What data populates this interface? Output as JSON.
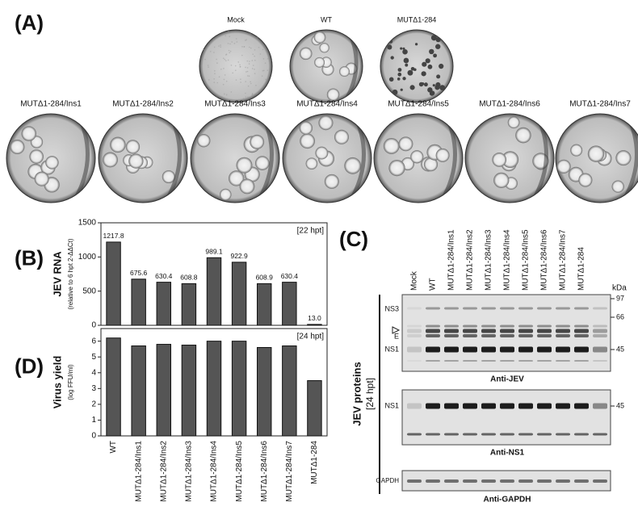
{
  "panel_a": {
    "label": "(A)",
    "plates": [
      "Mock",
      "WT",
      "MUTΔ1-284",
      "MUTΔ1-284/Ins1",
      "MUTΔ1-284/Ins2",
      "MUTΔ1-284/Ins3",
      "MUTΔ1-284/Ins4",
      "MUTΔ1-284/Ins5",
      "MUTΔ1-284/Ins6",
      "MUTΔ1-284/Ins7"
    ]
  },
  "chart_data": [
    {
      "type": "bar",
      "panel_label": "(B)",
      "ylabel": "JEV RNA",
      "ylabel_note": "(relative to 6 hpt 2-ΔΔCt)",
      "annotation": "[22 hpt]",
      "values": [
        1217.8,
        675.6,
        630.4,
        608.8,
        989.1,
        922.9,
        608.9,
        630.4,
        13.0
      ],
      "value_labels": [
        "1217.8",
        "675.6",
        "630.4",
        "608.8",
        "989.1",
        "922.9",
        "608.9",
        "630.4",
        "13.0"
      ],
      "color": "#555555",
      "ylim": [
        0,
        1500
      ],
      "yticks": [
        0,
        500,
        1000,
        1500
      ]
    },
    {
      "type": "bar",
      "panel_label": "(D)",
      "ylabel": "Virus yield",
      "ylabel_note": "(log FFU/ml)",
      "annotation": "[24 hpt]",
      "categories": [
        "WT",
        "MUTΔ1-284/Ins1",
        "MUTΔ1-284/Ins2",
        "MUTΔ1-284/Ins3",
        "MUTΔ1-284/Ins4",
        "MUTΔ1-284/Ins5",
        "MUTΔ1-284/Ins6",
        "MUTΔ1-284/Ins7",
        "MUTΔ1-284"
      ],
      "values": [
        6.2,
        5.7,
        5.8,
        5.75,
        6.0,
        6.0,
        5.6,
        5.7,
        3.5
      ],
      "color": "#555555",
      "ylim": [
        0,
        6.8
      ],
      "yticks": [
        0,
        1,
        2,
        3,
        4,
        5,
        6
      ]
    }
  ],
  "panel_c": {
    "label": "(C)",
    "kda_unit": "kDa",
    "side_label": "JEV proteins",
    "side_note": "[24 hpt]",
    "lanes": [
      "Mock",
      "WT",
      "MUTΔ1-284/Ins1",
      "MUTΔ1-284/Ins2",
      "MUTΔ1-284/Ins3",
      "MUTΔ1-284/Ins4",
      "MUTΔ1-284/Ins5",
      "MUTΔ1-284/Ins6",
      "MUTΔ1-284/Ins7",
      "MUTΔ1-284"
    ],
    "blots": [
      {
        "title": "Anti-JEV",
        "left_labels": [
          "NS3",
          "E",
          "NS1"
        ],
        "markers": [
          "97",
          "66",
          "45"
        ]
      },
      {
        "title": "Anti-NS1",
        "left_labels": [
          "NS1"
        ],
        "markers": [
          "45"
        ]
      },
      {
        "title": "Anti-GAPDH",
        "left_labels": [
          "GAPDH"
        ]
      }
    ]
  }
}
